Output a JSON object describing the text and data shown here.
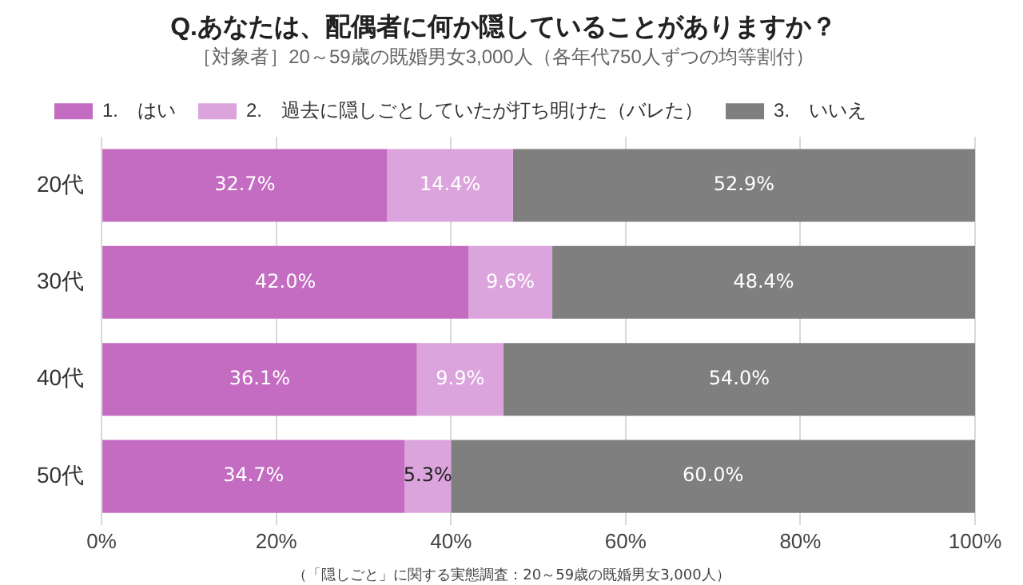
{
  "chart_data": {
    "type": "bar",
    "orientation": "horizontal",
    "stacked": true,
    "title": "Q.あなたは、配偶者に何か隠していることがありますか？",
    "subtitle": "［対象者］20～59歳の既婚男女3,000人（各年代750人ずつの均等割付）",
    "categories": [
      "20代",
      "30代",
      "40代",
      "50代"
    ],
    "series": [
      {
        "name": "1.　はい",
        "color": "#c36cc1",
        "values": [
          32.7,
          42.0,
          36.1,
          34.7
        ]
      },
      {
        "name": "2.　過去に隠しごとしていたが打ち明けた（バレた）",
        "color": "#dca4dc",
        "values": [
          14.4,
          9.6,
          9.9,
          5.3
        ]
      },
      {
        "name": "3.　いいえ",
        "color": "#7f7f7f",
        "values": [
          52.9,
          48.4,
          54.0,
          60.0
        ]
      }
    ],
    "value_labels": [
      [
        "32.7%",
        "42.0%",
        "36.1%",
        "34.7%"
      ],
      [
        "14.4%",
        "9.6%",
        "9.9%",
        "5.3%"
      ],
      [
        "52.9%",
        "48.4%",
        "54.0%",
        "60.0%"
      ]
    ],
    "xlim": [
      0,
      100
    ],
    "xticks": [
      {
        "value": 0,
        "label": "0%"
      },
      {
        "value": 20,
        "label": "20%"
      },
      {
        "value": 40,
        "label": "40%"
      },
      {
        "value": 60,
        "label": "60%"
      },
      {
        "value": 80,
        "label": "80%"
      },
      {
        "value": 100,
        "label": "100%"
      }
    ],
    "grid": "x",
    "legend": "top left",
    "annotations": [
      "（「隠しごと」に関する実態調査：20～59歳の既婚男女3,000人）"
    ]
  }
}
